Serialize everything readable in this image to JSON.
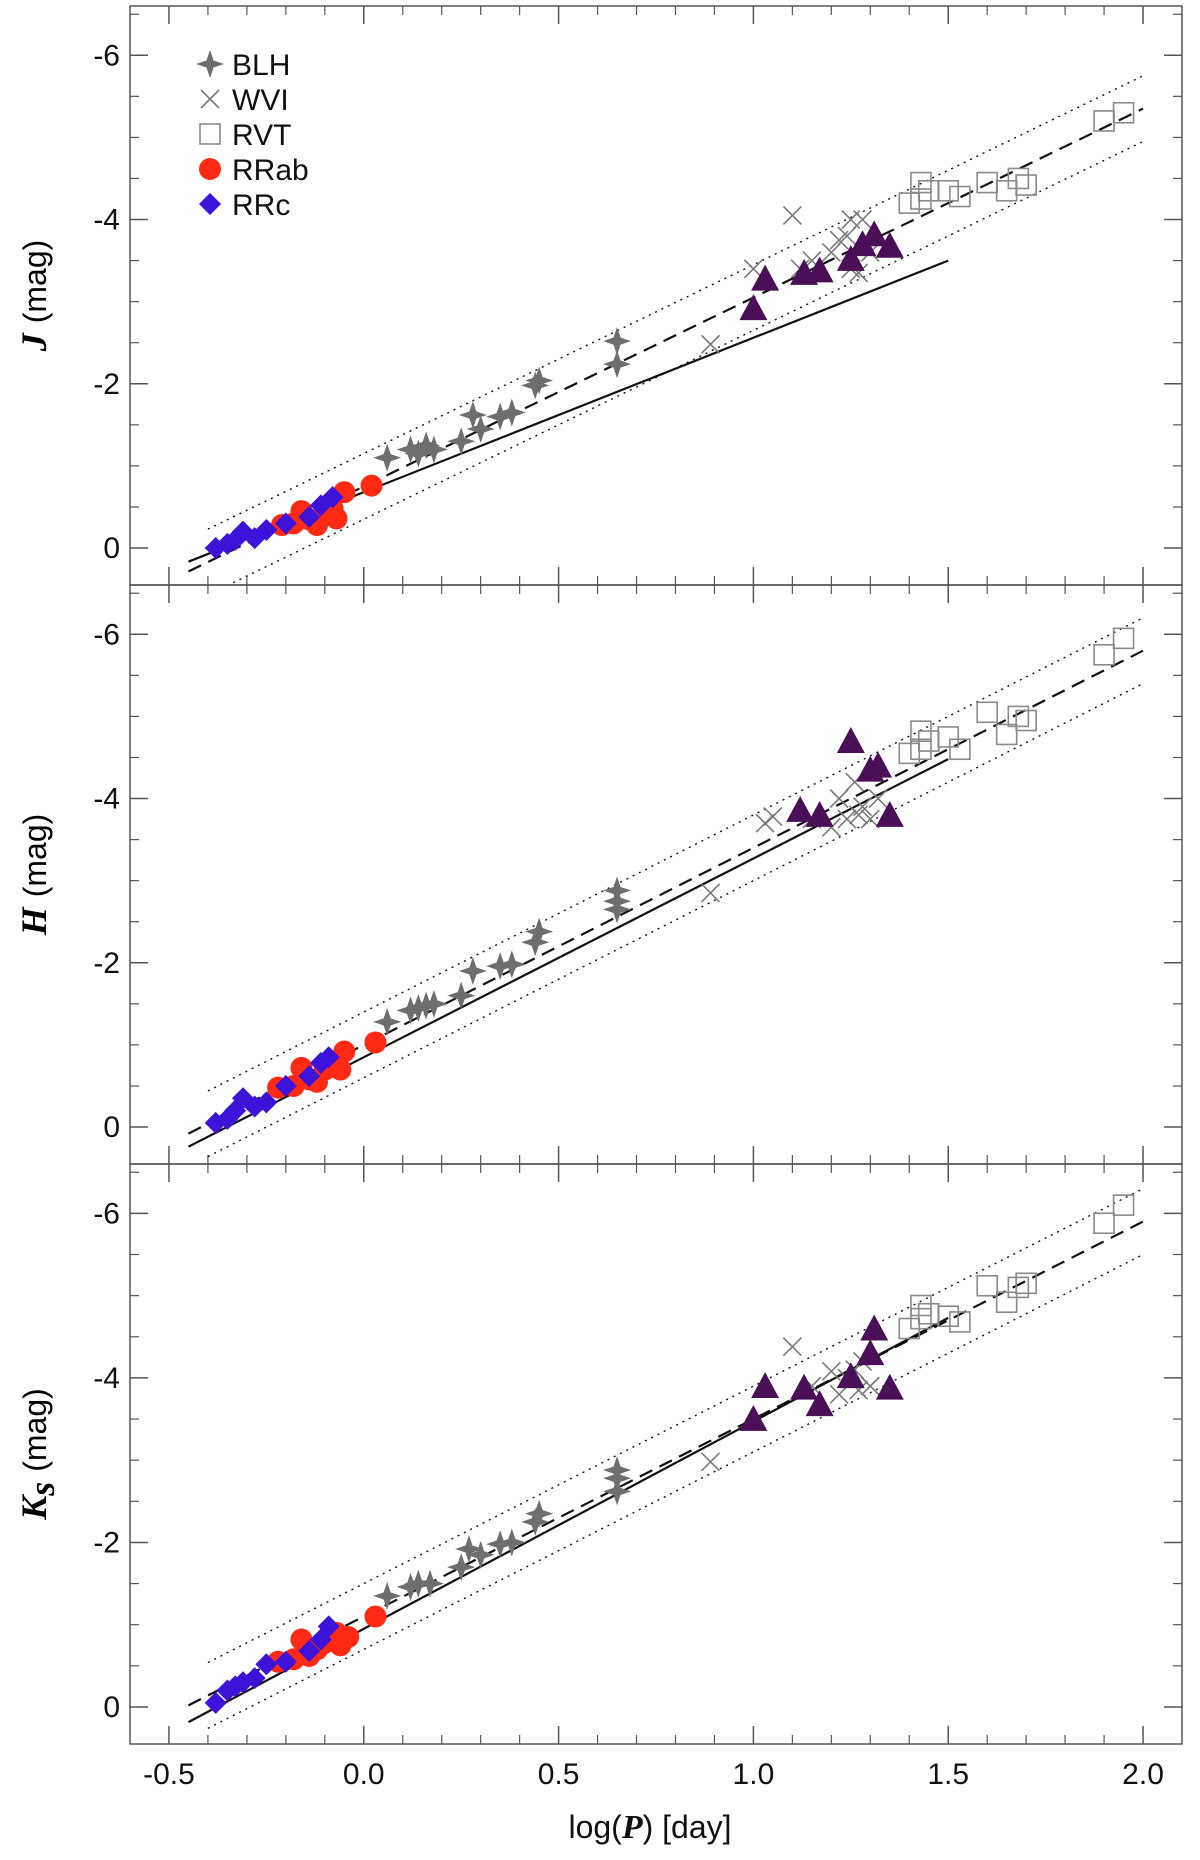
{
  "chart_data": {
    "type": "scatter",
    "xlabel_prefix": "log(",
    "xlabel_var": "P",
    "xlabel_suffix": ") [day]",
    "xlim": [
      -0.6,
      2.1
    ],
    "xticks": [
      -0.5,
      0.0,
      0.5,
      1.0,
      1.5,
      2.0
    ],
    "xtick_labels": [
      "-0.5",
      "0.0",
      "0.5",
      "1.0",
      "1.5",
      "2.0"
    ],
    "ylim": [
      0.45,
      -6.6
    ],
    "yticks": [
      0,
      -2,
      -4,
      -6
    ],
    "ytick_labels": [
      "0",
      "-2",
      "-4",
      "-6"
    ],
    "legend": [
      {
        "label": "BLH",
        "marker": "star",
        "color": "#6e6e6e"
      },
      {
        "label": "WVI",
        "marker": "cross",
        "color": "#7a7a7a"
      },
      {
        "label": "RVT",
        "marker": "square",
        "color": "#8a8a8a"
      },
      {
        "label": "RRab",
        "marker": "circle",
        "color": "#ff2a14"
      },
      {
        "label": "RRc",
        "marker": "diamond",
        "color": "#3d12d9"
      }
    ],
    "extra_series": [
      {
        "name": "Type II Cepheids (triangles)",
        "marker": "triangle",
        "color": "#4a0f57"
      }
    ],
    "panels": [
      {
        "band": "J",
        "ylabel_var": "J",
        "ylabel_sub": "",
        "ylabel_unit": "(mag)",
        "fit_dashed": {
          "slope": -2.3,
          "intercept": -0.75,
          "x_range": [
            -0.45,
            2.0
          ]
        },
        "fit_dotted_upper": {
          "slope": -2.3,
          "intercept": -1.15,
          "x_range": [
            -0.4,
            2.0
          ]
        },
        "fit_dotted_lower": {
          "slope": -2.3,
          "intercept": -0.35,
          "x_range": [
            -0.4,
            2.0
          ]
        },
        "fit_solid": {
          "slope": -1.88,
          "intercept": -0.68,
          "x_range": [
            -0.45,
            1.5
          ]
        },
        "series": {
          "RRc": [
            [
              -0.38,
              0.0
            ],
            [
              -0.35,
              -0.05
            ],
            [
              -0.33,
              -0.1
            ],
            [
              -0.31,
              -0.2
            ],
            [
              -0.28,
              -0.12
            ],
            [
              -0.25,
              -0.22
            ],
            [
              -0.2,
              -0.3
            ],
            [
              -0.14,
              -0.38
            ],
            [
              -0.11,
              -0.52
            ],
            [
              -0.08,
              -0.62
            ]
          ],
          "RRab": [
            [
              -0.21,
              -0.28
            ],
            [
              -0.18,
              -0.3
            ],
            [
              -0.16,
              -0.45
            ],
            [
              -0.14,
              -0.35
            ],
            [
              -0.12,
              -0.28
            ],
            [
              -0.1,
              -0.4
            ],
            [
              -0.08,
              -0.48
            ],
            [
              -0.07,
              -0.36
            ],
            [
              -0.05,
              -0.68
            ],
            [
              0.02,
              -0.76
            ]
          ],
          "BLH": [
            [
              0.06,
              -1.1
            ],
            [
              0.12,
              -1.2
            ],
            [
              0.14,
              -1.15
            ],
            [
              0.16,
              -1.25
            ],
            [
              0.18,
              -1.2
            ],
            [
              0.25,
              -1.3
            ],
            [
              0.28,
              -1.62
            ],
            [
              0.3,
              -1.45
            ],
            [
              0.35,
              -1.6
            ],
            [
              0.38,
              -1.65
            ],
            [
              0.44,
              -1.98
            ],
            [
              0.45,
              -2.04
            ],
            [
              0.65,
              -2.52
            ],
            [
              0.65,
              -2.24
            ]
          ],
          "WVI": [
            [
              0.89,
              -2.48
            ],
            [
              1.0,
              -3.4
            ],
            [
              1.1,
              -4.05
            ],
            [
              1.12,
              -3.4
            ],
            [
              1.15,
              -3.5
            ],
            [
              1.2,
              -3.6
            ],
            [
              1.22,
              -3.75
            ],
            [
              1.24,
              -3.8
            ],
            [
              1.25,
              -4.0
            ],
            [
              1.25,
              -3.4
            ],
            [
              1.27,
              -3.35
            ],
            [
              1.28,
              -4.0
            ],
            [
              1.3,
              -3.6
            ]
          ],
          "triangles": [
            [
              1.0,
              -2.92
            ],
            [
              1.03,
              -3.28
            ],
            [
              1.13,
              -3.35
            ],
            [
              1.17,
              -3.38
            ],
            [
              1.25,
              -3.52
            ],
            [
              1.28,
              -3.7
            ],
            [
              1.31,
              -3.82
            ],
            [
              1.35,
              -3.68
            ]
          ],
          "RVT": [
            [
              1.4,
              -4.2
            ],
            [
              1.43,
              -4.25
            ],
            [
              1.43,
              -4.45
            ],
            [
              1.45,
              -4.35
            ],
            [
              1.5,
              -4.35
            ],
            [
              1.53,
              -4.28
            ],
            [
              1.6,
              -4.45
            ],
            [
              1.65,
              -4.35
            ],
            [
              1.68,
              -4.5
            ],
            [
              1.7,
              -4.42
            ],
            [
              1.9,
              -5.2
            ],
            [
              1.95,
              -5.3
            ]
          ]
        }
      },
      {
        "band": "H",
        "ylabel_var": "H",
        "ylabel_sub": "",
        "ylabel_unit": "(mag)",
        "fit_dashed": {
          "slope": -2.4,
          "intercept": -1.0,
          "x_range": [
            -0.45,
            2.0
          ]
        },
        "fit_dotted_upper": {
          "slope": -2.4,
          "intercept": -1.4,
          "x_range": [
            -0.4,
            2.0
          ]
        },
        "fit_dotted_lower": {
          "slope": -2.4,
          "intercept": -0.6,
          "x_range": [
            -0.4,
            2.0
          ]
        },
        "fit_solid": {
          "slope": -2.42,
          "intercept": -0.85,
          "x_range": [
            -0.45,
            1.5
          ]
        },
        "series": {
          "RRc": [
            [
              -0.38,
              -0.05
            ],
            [
              -0.35,
              -0.1
            ],
            [
              -0.33,
              -0.2
            ],
            [
              -0.31,
              -0.35
            ],
            [
              -0.28,
              -0.25
            ],
            [
              -0.25,
              -0.3
            ],
            [
              -0.2,
              -0.5
            ],
            [
              -0.14,
              -0.62
            ],
            [
              -0.11,
              -0.78
            ],
            [
              -0.09,
              -0.85
            ]
          ],
          "RRab": [
            [
              -0.22,
              -0.48
            ],
            [
              -0.18,
              -0.5
            ],
            [
              -0.16,
              -0.72
            ],
            [
              -0.14,
              -0.58
            ],
            [
              -0.12,
              -0.55
            ],
            [
              -0.1,
              -0.7
            ],
            [
              -0.07,
              -0.8
            ],
            [
              -0.06,
              -0.7
            ],
            [
              -0.05,
              -0.92
            ],
            [
              0.03,
              -1.03
            ]
          ],
          "BLH": [
            [
              0.06,
              -1.28
            ],
            [
              0.12,
              -1.42
            ],
            [
              0.14,
              -1.45
            ],
            [
              0.16,
              -1.48
            ],
            [
              0.18,
              -1.5
            ],
            [
              0.25,
              -1.6
            ],
            [
              0.28,
              -1.9
            ],
            [
              0.35,
              -1.96
            ],
            [
              0.38,
              -1.98
            ],
            [
              0.44,
              -2.25
            ],
            [
              0.45,
              -2.38
            ],
            [
              0.65,
              -2.65
            ],
            [
              0.65,
              -2.88
            ],
            [
              0.65,
              -2.75
            ]
          ],
          "WVI": [
            [
              0.89,
              -2.85
            ],
            [
              1.03,
              -3.7
            ],
            [
              1.05,
              -3.78
            ],
            [
              1.15,
              -3.75
            ],
            [
              1.2,
              -3.65
            ],
            [
              1.22,
              -4.0
            ],
            [
              1.24,
              -3.75
            ],
            [
              1.26,
              -4.2
            ],
            [
              1.27,
              -3.8
            ],
            [
              1.28,
              -3.9
            ],
            [
              1.3,
              -3.75
            ],
            [
              1.32,
              -4.0
            ]
          ],
          "triangles": [
            [
              1.12,
              -3.86
            ],
            [
              1.17,
              -3.8
            ],
            [
              1.25,
              -4.7
            ],
            [
              1.3,
              -4.35
            ],
            [
              1.32,
              -4.4
            ],
            [
              1.35,
              -3.8
            ]
          ],
          "RVT": [
            [
              1.4,
              -4.55
            ],
            [
              1.43,
              -4.6
            ],
            [
              1.43,
              -4.82
            ],
            [
              1.45,
              -4.7
            ],
            [
              1.5,
              -4.75
            ],
            [
              1.53,
              -4.6
            ],
            [
              1.6,
              -5.05
            ],
            [
              1.65,
              -4.78
            ],
            [
              1.68,
              -5.0
            ],
            [
              1.7,
              -4.95
            ],
            [
              1.9,
              -5.75
            ],
            [
              1.95,
              -5.95
            ]
          ]
        }
      },
      {
        "band": "Ks",
        "ylabel_var": "K",
        "ylabel_sub": "s",
        "ylabel_unit": "(mag)",
        "fit_dashed": {
          "slope": -2.4,
          "intercept": -1.1,
          "x_range": [
            -0.45,
            2.0
          ]
        },
        "fit_dotted_upper": {
          "slope": -2.4,
          "intercept": -1.5,
          "x_range": [
            -0.4,
            2.0
          ]
        },
        "fit_dotted_lower": {
          "slope": -2.4,
          "intercept": -0.7,
          "x_range": [
            -0.4,
            2.0
          ]
        },
        "fit_solid": {
          "slope": -2.52,
          "intercept": -0.95,
          "x_range": [
            -0.45,
            1.5
          ]
        },
        "series": {
          "RRc": [
            [
              -0.38,
              -0.05
            ],
            [
              -0.35,
              -0.2
            ],
            [
              -0.33,
              -0.25
            ],
            [
              -0.31,
              -0.3
            ],
            [
              -0.28,
              -0.35
            ],
            [
              -0.25,
              -0.52
            ],
            [
              -0.2,
              -0.55
            ],
            [
              -0.14,
              -0.68
            ],
            [
              -0.11,
              -0.82
            ],
            [
              -0.09,
              -0.98
            ]
          ],
          "RRab": [
            [
              -0.22,
              -0.55
            ],
            [
              -0.18,
              -0.58
            ],
            [
              -0.16,
              -0.82
            ],
            [
              -0.14,
              -0.62
            ],
            [
              -0.12,
              -0.7
            ],
            [
              -0.1,
              -0.78
            ],
            [
              -0.07,
              -0.9
            ],
            [
              -0.06,
              -0.75
            ],
            [
              -0.04,
              -0.85
            ],
            [
              0.03,
              -1.1
            ]
          ],
          "BLH": [
            [
              0.06,
              -1.35
            ],
            [
              0.12,
              -1.46
            ],
            [
              0.14,
              -1.5
            ],
            [
              0.17,
              -1.5
            ],
            [
              0.25,
              -1.7
            ],
            [
              0.27,
              -1.92
            ],
            [
              0.3,
              -1.85
            ],
            [
              0.35,
              -1.98
            ],
            [
              0.38,
              -2.0
            ],
            [
              0.44,
              -2.25
            ],
            [
              0.45,
              -2.35
            ],
            [
              0.65,
              -2.62
            ],
            [
              0.65,
              -2.88
            ],
            [
              0.65,
              -2.78
            ]
          ],
          "WVI": [
            [
              0.89,
              -2.98
            ],
            [
              1.1,
              -4.38
            ],
            [
              1.15,
              -3.9
            ],
            [
              1.2,
              -4.08
            ],
            [
              1.22,
              -3.8
            ],
            [
              1.24,
              -4.0
            ],
            [
              1.26,
              -4.1
            ],
            [
              1.27,
              -3.85
            ],
            [
              1.28,
              -4.2
            ],
            [
              1.3,
              -3.9
            ]
          ],
          "triangles": [
            [
              1.0,
              -3.5
            ],
            [
              1.03,
              -3.9
            ],
            [
              1.13,
              -3.88
            ],
            [
              1.17,
              -3.68
            ],
            [
              1.25,
              -4.02
            ],
            [
              1.3,
              -4.3
            ],
            [
              1.31,
              -4.6
            ],
            [
              1.35,
              -3.88
            ]
          ],
          "RVT": [
            [
              1.4,
              -4.6
            ],
            [
              1.43,
              -4.72
            ],
            [
              1.43,
              -4.88
            ],
            [
              1.45,
              -4.78
            ],
            [
              1.5,
              -4.75
            ],
            [
              1.53,
              -4.68
            ],
            [
              1.6,
              -5.12
            ],
            [
              1.65,
              -4.92
            ],
            [
              1.68,
              -5.1
            ],
            [
              1.7,
              -5.15
            ],
            [
              1.9,
              -5.88
            ],
            [
              1.95,
              -6.1
            ]
          ]
        }
      }
    ]
  }
}
